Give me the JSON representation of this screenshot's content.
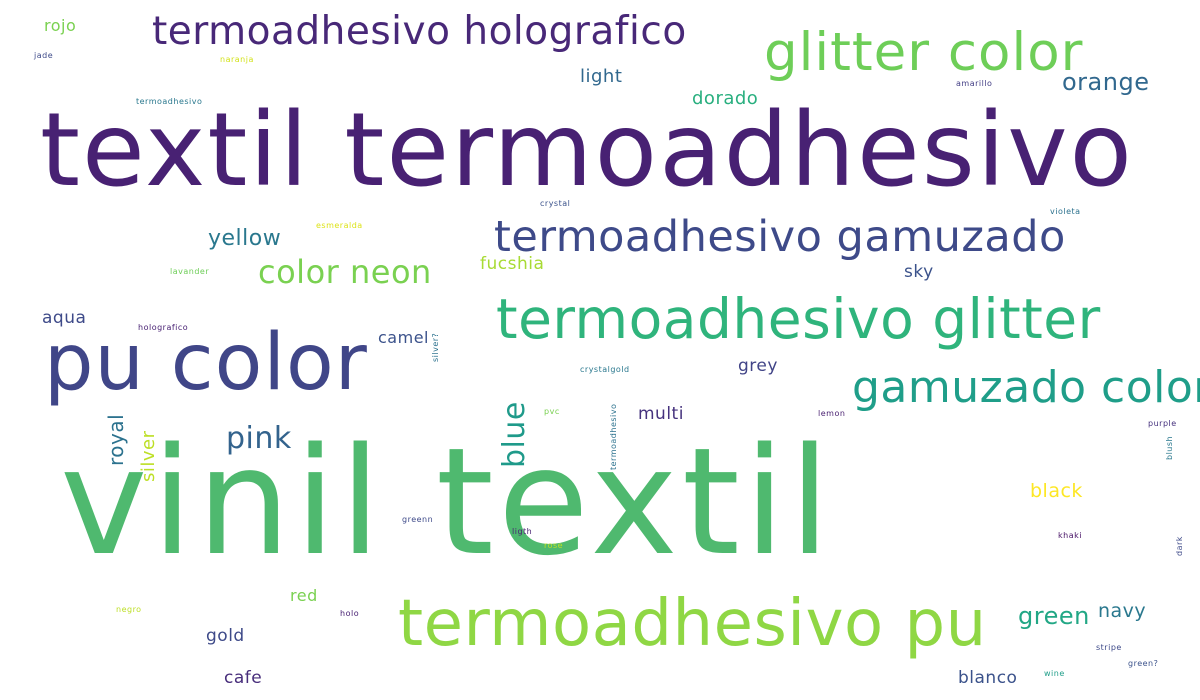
{
  "colors": {
    "dark_purple": "#482173",
    "indigo": "#3e4a89",
    "slate_blue": "#31688e",
    "teal": "#26828e",
    "sea_green": "#1f9e89",
    "mint": "#35b779",
    "green": "#6ece58",
    "lime": "#b5de2b",
    "yellow": "#fde725"
  },
  "words": [
    {
      "id": "vinil-textil",
      "text": "vinil textil",
      "color": "#4fb96f"
    },
    {
      "id": "textil-termoadhesivo",
      "text": "textil termoadhesivo",
      "color": "#482173"
    },
    {
      "id": "termoadhesivo-holografico",
      "text": "termoadhesivo holografico",
      "color": "#482878"
    },
    {
      "id": "glitter-color",
      "text": "glitter color",
      "color": "#6ece58"
    },
    {
      "id": "termoadhesivo-gamuzado",
      "text": "termoadhesivo gamuzado",
      "color": "#3e4a89"
    },
    {
      "id": "termoadhesivo-glitter",
      "text": "termoadhesivo glitter",
      "color": "#2fb47c"
    },
    {
      "id": "pu-color",
      "text": "pu color",
      "color": "#404688"
    },
    {
      "id": "gamuzado-color",
      "text": "gamuzado color",
      "color": "#1f9e89"
    },
    {
      "id": "termoadhesivo-pu",
      "text": "termoadhesivo pu",
      "color": "#8fd744"
    },
    {
      "id": "color-neon",
      "text": "color neon",
      "color": "#7ad151"
    },
    {
      "id": "yellow",
      "text": "yellow",
      "color": "#2a788e"
    },
    {
      "id": "fucshia",
      "text": "fucshia",
      "color": "#a8db34"
    },
    {
      "id": "orange",
      "text": "orange",
      "color": "#31688e"
    },
    {
      "id": "dorado",
      "text": "dorado",
      "color": "#29af7f"
    },
    {
      "id": "light",
      "text": "light",
      "color": "#31688e"
    },
    {
      "id": "rojo",
      "text": "rojo",
      "color": "#7ad151"
    },
    {
      "id": "pink",
      "text": "pink",
      "color": "#33638d"
    },
    {
      "id": "blue",
      "text": "blue",
      "color": "#1f9a8a"
    },
    {
      "id": "royal",
      "text": "royal",
      "color": "#2c728e"
    },
    {
      "id": "silver",
      "text": "silver",
      "color": "#bddf26"
    },
    {
      "id": "camel",
      "text": "camel",
      "color": "#3b528b"
    },
    {
      "id": "aqua",
      "text": "aqua",
      "color": "#3e4a89"
    },
    {
      "id": "sky",
      "text": "sky",
      "color": "#3b528b"
    },
    {
      "id": "grey",
      "text": "grey",
      "color": "#414487"
    },
    {
      "id": "multi",
      "text": "multi",
      "color": "#46327e"
    },
    {
      "id": "black",
      "text": "black",
      "color": "#fde725"
    },
    {
      "id": "green-word",
      "text": "green",
      "color": "#22a785"
    },
    {
      "id": "navy",
      "text": "navy",
      "color": "#2a788e"
    },
    {
      "id": "red",
      "text": "red",
      "color": "#7ad151"
    },
    {
      "id": "gold",
      "text": "gold",
      "color": "#3e4a89"
    },
    {
      "id": "cafe",
      "text": "cafe",
      "color": "#472d7b"
    },
    {
      "id": "blanco",
      "text": "blanco",
      "color": "#3b528b"
    },
    {
      "id": "jade",
      "text": "jade",
      "color": "#3e4a89"
    },
    {
      "id": "naranja",
      "text": "naranja",
      "color": "#d2e21b"
    },
    {
      "id": "termoadhesivo-small",
      "text": "termoadhesivo",
      "color": "#2a788e"
    },
    {
      "id": "amarillo",
      "text": "amarillo",
      "color": "#433e85"
    },
    {
      "id": "crystal",
      "text": "crystal",
      "color": "#3b528b"
    },
    {
      "id": "violeta",
      "text": "violeta",
      "color": "#2c728e"
    },
    {
      "id": "esmeralda",
      "text": "esmeralda",
      "color": "#dde318"
    },
    {
      "id": "lavander",
      "text": "lavander",
      "color": "#6ece58"
    },
    {
      "id": "holografico-small",
      "text": "holografico",
      "color": "#482173"
    },
    {
      "id": "silver-q",
      "text": "silver?",
      "color": "#2c728e"
    },
    {
      "id": "crystalgold",
      "text": "crystalgold",
      "color": "#2a788e"
    },
    {
      "id": "pvc",
      "text": "pvc",
      "color": "#7ad151"
    },
    {
      "id": "termoadhesivo-vertical",
      "text": "termoadhesivo",
      "color": "#2c728e"
    },
    {
      "id": "lemon",
      "text": "lemon",
      "color": "#481f70"
    },
    {
      "id": "purple",
      "text": "purple",
      "color": "#46327e"
    },
    {
      "id": "blush",
      "text": "blush",
      "color": "#2a788e"
    },
    {
      "id": "greenn",
      "text": "greenn",
      "color": "#3e4a89"
    },
    {
      "id": "ligth",
      "text": "ligth",
      "color": "#482173"
    },
    {
      "id": "rose",
      "text": "rose",
      "color": "#bddf26"
    },
    {
      "id": "khaki",
      "text": "khaki",
      "color": "#481467"
    },
    {
      "id": "dark",
      "text": "dark",
      "color": "#3e4a89"
    },
    {
      "id": "negro",
      "text": "negro",
      "color": "#bddf26"
    },
    {
      "id": "holo",
      "text": "holo",
      "color": "#482173"
    },
    {
      "id": "stripe",
      "text": "stripe",
      "color": "#3e4a89"
    },
    {
      "id": "wine",
      "text": "wine",
      "color": "#1f9e89"
    },
    {
      "id": "green-q",
      "text": "green?",
      "color": "#3b528b"
    }
  ]
}
